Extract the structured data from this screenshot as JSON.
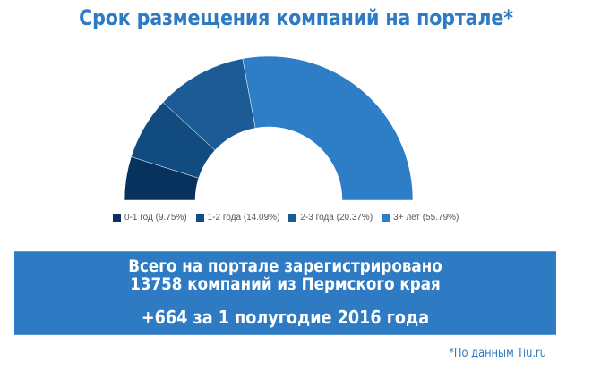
{
  "title": "Срок размещения компаний на портале*",
  "chart_data": {
    "type": "pie",
    "variant": "half-donut",
    "title": "Срок размещения компаний на портале*",
    "categories": [
      "0-1 год",
      "1-2 года",
      "2-3 года",
      "3+ лет"
    ],
    "values": [
      9.75,
      14.09,
      20.37,
      55.79
    ],
    "unit": "%",
    "colors": [
      "#08325e",
      "#124b80",
      "#1c5b96",
      "#2e7ec7"
    ],
    "legend_position": "bottom",
    "legend": [
      "0-1 год (9.75%)",
      "1-2 года (14.09%)",
      "2-3 года (20.37%)",
      "3+ лет (55.79%)"
    ]
  },
  "banner": {
    "line1": "Всего на портале зарегистрировано",
    "line2": "13758 компаний из Пермского края",
    "line3": "+664 за 1 полугодие 2016 года",
    "color": "#2e7bc4"
  },
  "footnote": "*По данным Tiu.ru"
}
